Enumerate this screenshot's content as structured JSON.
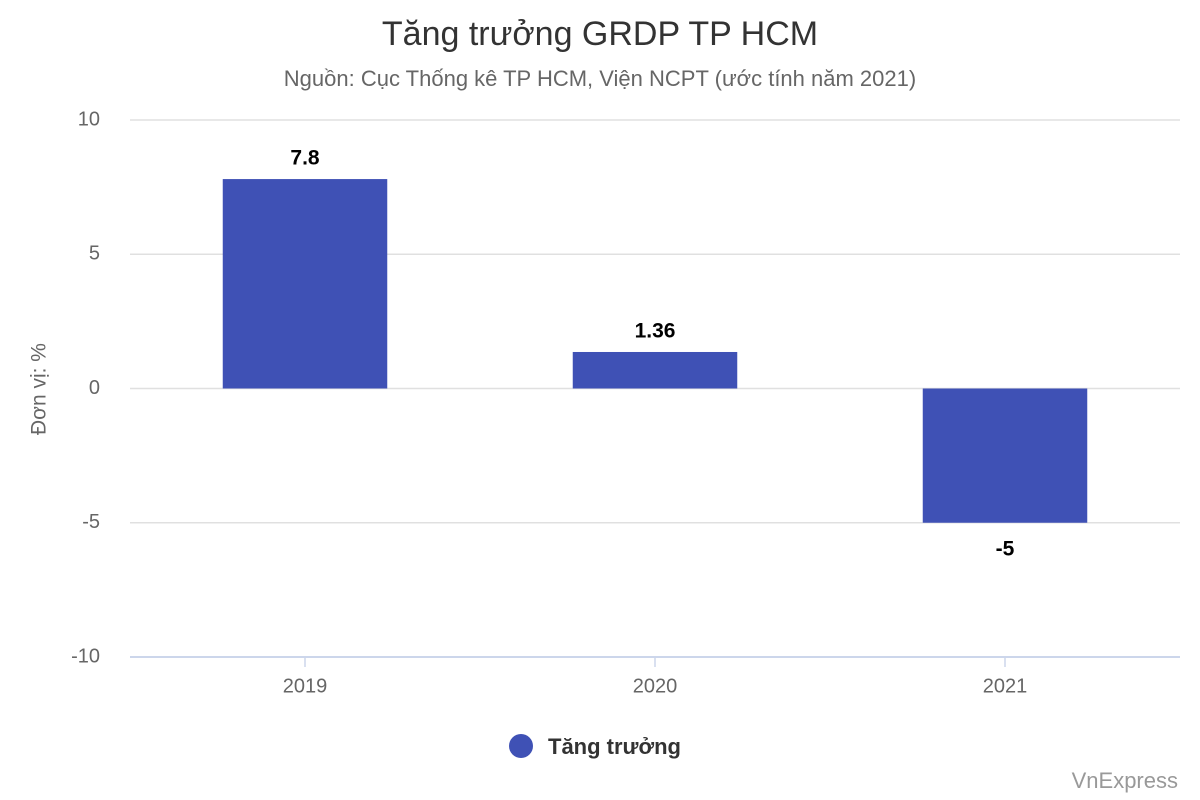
{
  "chart_data": {
    "type": "bar",
    "title": "Tăng trưởng GRDP TP HCM",
    "subtitle": "Nguồn: Cục Thống kê TP HCM, Viện NCPT (ước tính năm 2021)",
    "y_axis_label": "Đơn vị: %",
    "categories": [
      "2019",
      "2020",
      "2021"
    ],
    "series": [
      {
        "name": "Tăng trưởng",
        "color": "#3f51b5",
        "values": [
          7.8,
          1.36,
          -5
        ]
      }
    ],
    "ylim": [
      -10,
      10
    ],
    "yticks": [
      -10,
      -5,
      0,
      5,
      10
    ],
    "grid": true,
    "legend": "bottom",
    "credits": "VnExpress"
  }
}
